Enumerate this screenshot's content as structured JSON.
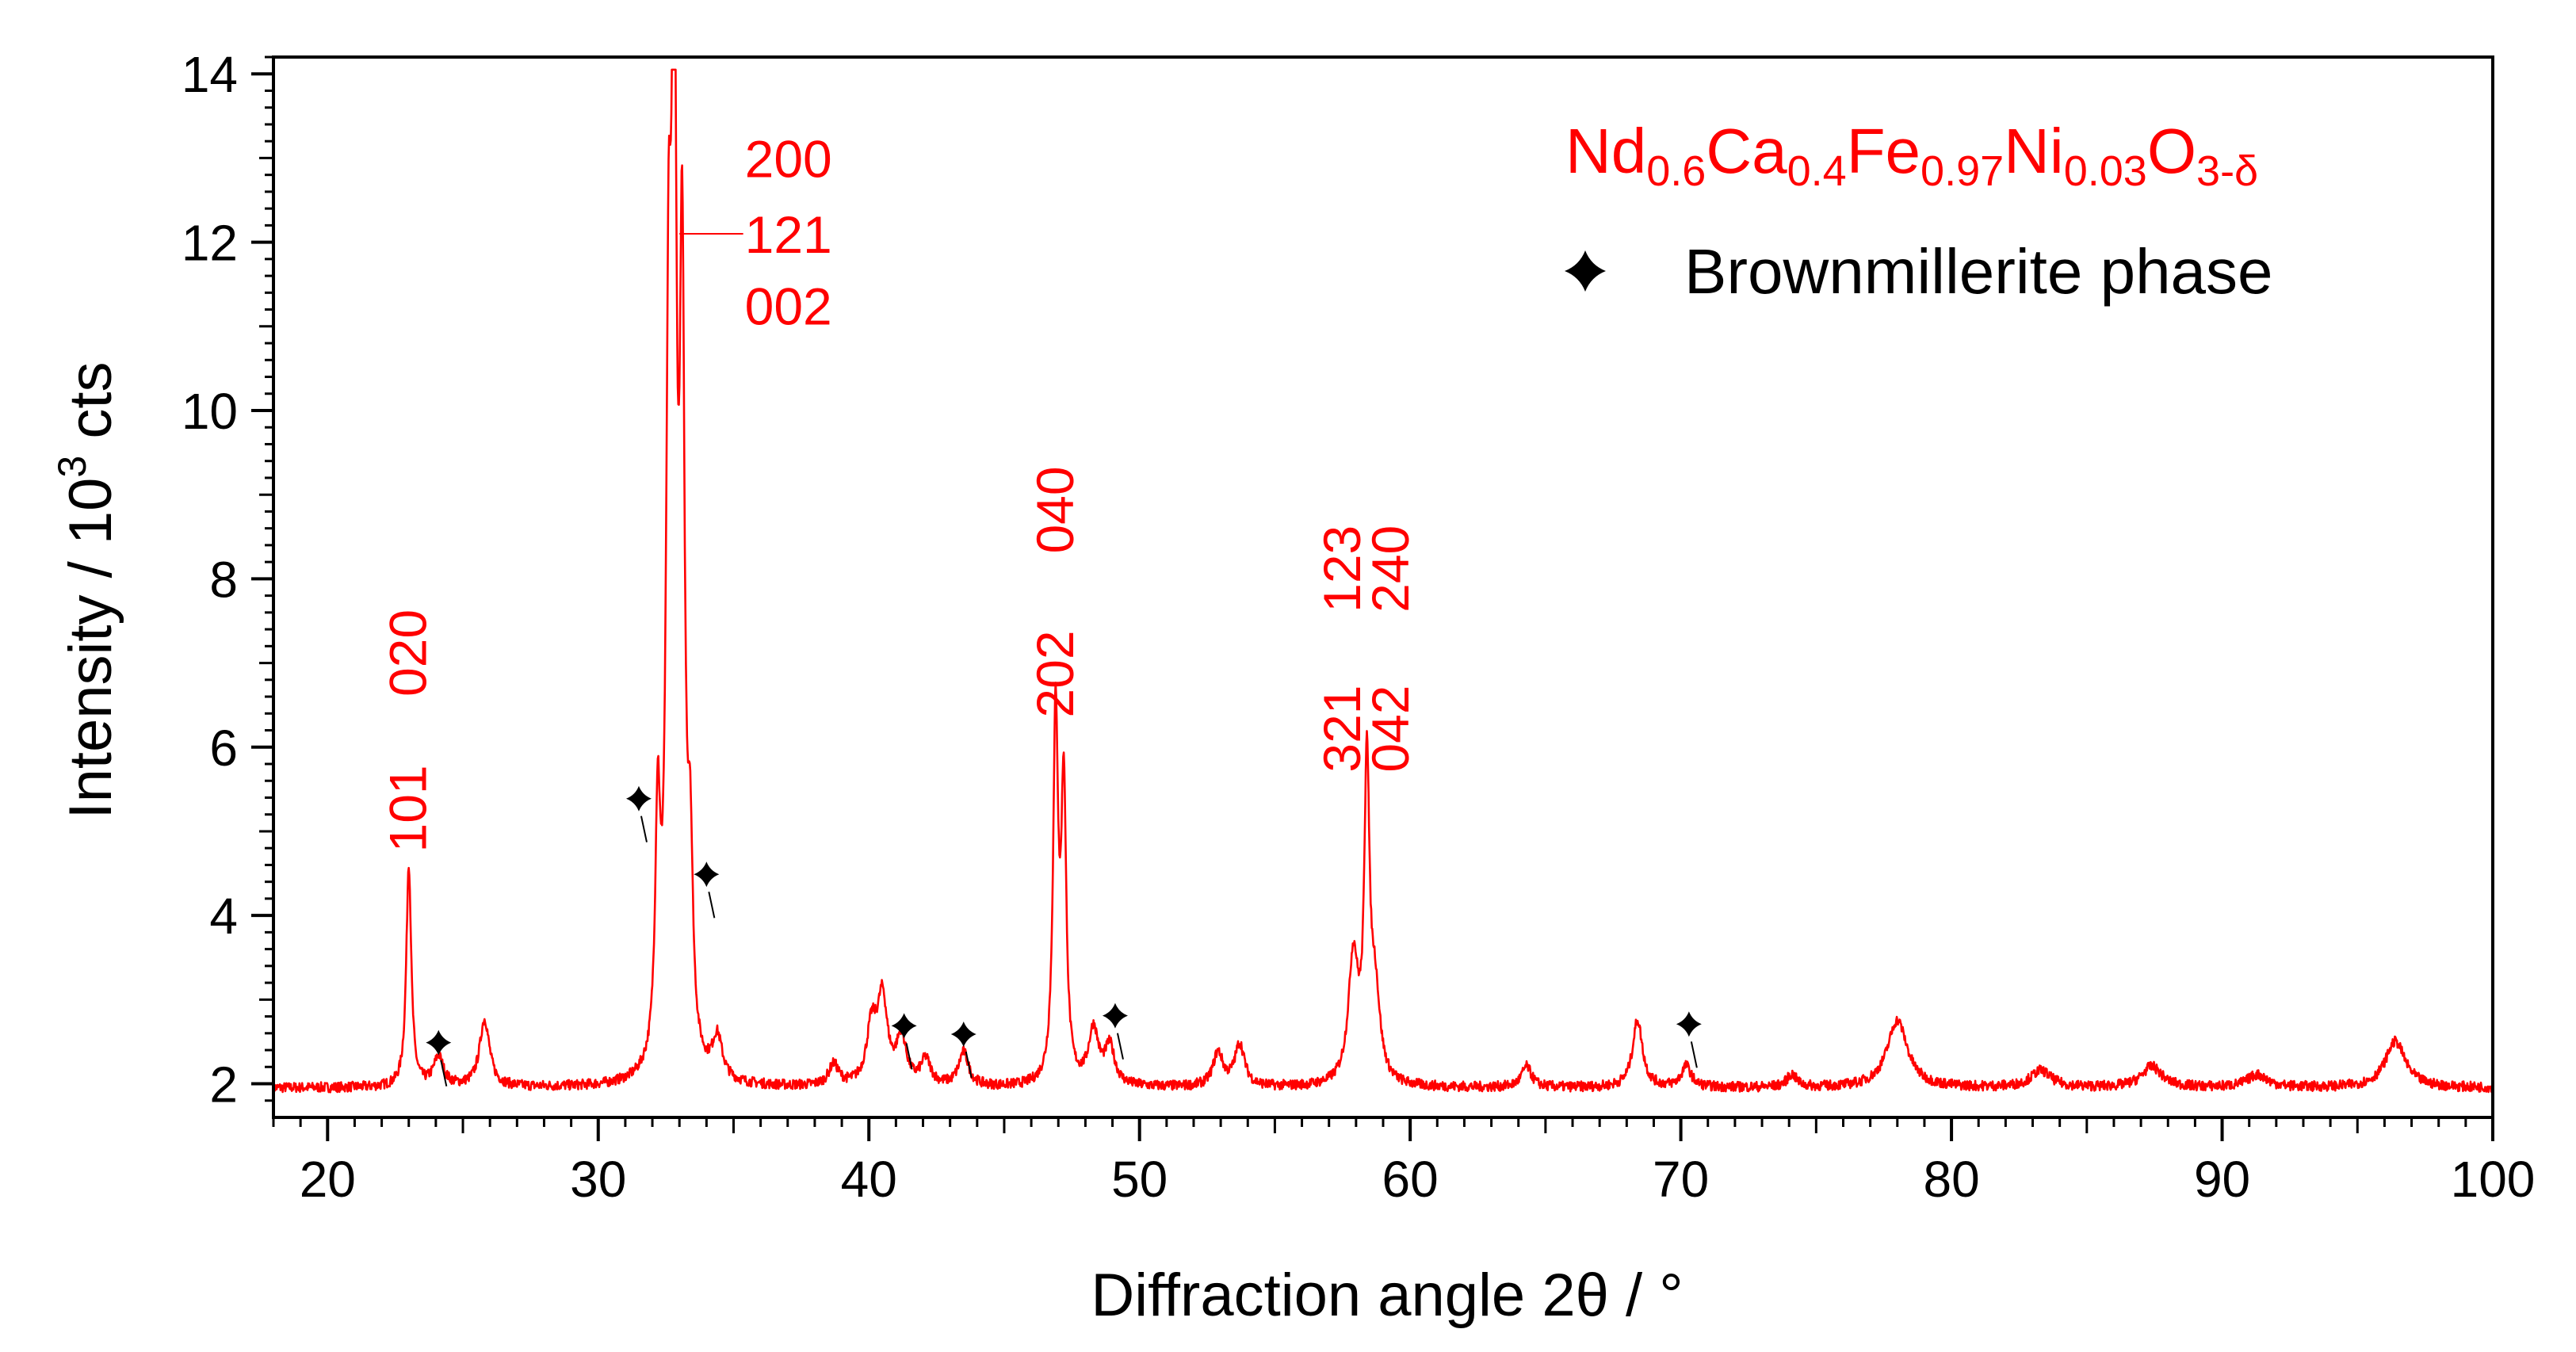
{
  "chart_data": {
    "type": "line",
    "xlabel": "Diffraction angle 2θ / °",
    "ylabel_main": "Intensity / 10",
    "ylabel_sup": "3",
    "ylabel_tail": " cts",
    "xlim": [
      18,
      100
    ],
    "ylim": [
      1.6,
      14.2
    ],
    "xticks": [
      20,
      30,
      40,
      50,
      60,
      70,
      80,
      90,
      100
    ],
    "yticks": [
      2,
      4,
      6,
      8,
      10,
      12,
      14
    ],
    "background_level": 1.95,
    "line_color": "#ff0000",
    "peaks": [
      {
        "x": 23.0,
        "y": 4.6
      },
      {
        "x": 24.1,
        "y": 2.3
      },
      {
        "x": 25.8,
        "y": 2.75
      },
      {
        "x": 32.2,
        "y": 4.8
      },
      {
        "x": 32.6,
        "y": 9.5
      },
      {
        "x": 32.8,
        "y": 14.0
      },
      {
        "x": 33.1,
        "y": 10.8
      },
      {
        "x": 33.4,
        "y": 4.1
      },
      {
        "x": 34.4,
        "y": 2.45
      },
      {
        "x": 38.7,
        "y": 2.2
      },
      {
        "x": 40.1,
        "y": 2.6
      },
      {
        "x": 40.5,
        "y": 2.95
      },
      {
        "x": 41.2,
        "y": 2.5
      },
      {
        "x": 42.1,
        "y": 2.25
      },
      {
        "x": 43.5,
        "y": 2.35
      },
      {
        "x": 46.9,
        "y": 6.3
      },
      {
        "x": 47.2,
        "y": 5.4
      },
      {
        "x": 48.3,
        "y": 2.6
      },
      {
        "x": 48.9,
        "y": 2.4
      },
      {
        "x": 52.9,
        "y": 2.35
      },
      {
        "x": 53.7,
        "y": 2.45
      },
      {
        "x": 57.9,
        "y": 3.45
      },
      {
        "x": 58.4,
        "y": 5.6
      },
      {
        "x": 58.7,
        "y": 3.0
      },
      {
        "x": 64.3,
        "y": 2.2
      },
      {
        "x": 68.4,
        "y": 2.75
      },
      {
        "x": 70.2,
        "y": 2.2
      },
      {
        "x": 74.1,
        "y": 2.1
      },
      {
        "x": 78.0,
        "y": 2.75
      },
      {
        "x": 83.3,
        "y": 2.15
      },
      {
        "x": 87.4,
        "y": 2.2
      },
      {
        "x": 91.3,
        "y": 2.1
      },
      {
        "x": 96.4,
        "y": 2.5
      }
    ],
    "hkl_labels": [
      {
        "text": "101",
        "x": 23.0,
        "y": 4.75,
        "vertical": true
      },
      {
        "text": "020",
        "x": 23.0,
        "y": 6.6,
        "vertical": true
      },
      {
        "text": "200",
        "x": 36.0,
        "y": 13.0,
        "vertical": false
      },
      {
        "text": "121",
        "x": 36.0,
        "y": 12.1,
        "vertical": false
      },
      {
        "text": "002",
        "x": 36.0,
        "y": 11.25,
        "vertical": false
      },
      {
        "text": "202",
        "x": 46.9,
        "y": 6.35,
        "vertical": true
      },
      {
        "text": "040",
        "x": 46.9,
        "y": 8.3,
        "vertical": true
      },
      {
        "text": "321",
        "x": 57.5,
        "y": 5.7,
        "vertical": true
      },
      {
        "text": "123",
        "x": 57.5,
        "y": 7.6,
        "vertical": true
      },
      {
        "text": "042",
        "x": 59.3,
        "y": 5.7,
        "vertical": true
      },
      {
        "text": "240",
        "x": 59.3,
        "y": 7.6,
        "vertical": true
      }
    ],
    "brownmillerite_markers": [
      {
        "x": 24.1,
        "y": 2.3
      },
      {
        "x": 31.5,
        "y": 5.2
      },
      {
        "x": 34.0,
        "y": 4.3
      },
      {
        "x": 41.3,
        "y": 2.5
      },
      {
        "x": 43.5,
        "y": 2.4
      },
      {
        "x": 49.1,
        "y": 2.62
      },
      {
        "x": 70.3,
        "y": 2.52
      }
    ],
    "legend": {
      "placement": "top-right",
      "formula_parts": [
        {
          "t": "Nd",
          "sub": false
        },
        {
          "t": "0.6",
          "sub": true
        },
        {
          "t": "Ca",
          "sub": false
        },
        {
          "t": "0.4",
          "sub": true
        },
        {
          "t": "Fe",
          "sub": false
        },
        {
          "t": "0.97",
          "sub": true
        },
        {
          "t": "Ni",
          "sub": false
        },
        {
          "t": "0.03",
          "sub": true
        },
        {
          "t": "O",
          "sub": false
        },
        {
          "t": "3-δ",
          "sub": true
        }
      ],
      "marker_label": "Brownmillerite phase",
      "formula_color": "#ff0000",
      "marker_color": "#000000"
    }
  }
}
